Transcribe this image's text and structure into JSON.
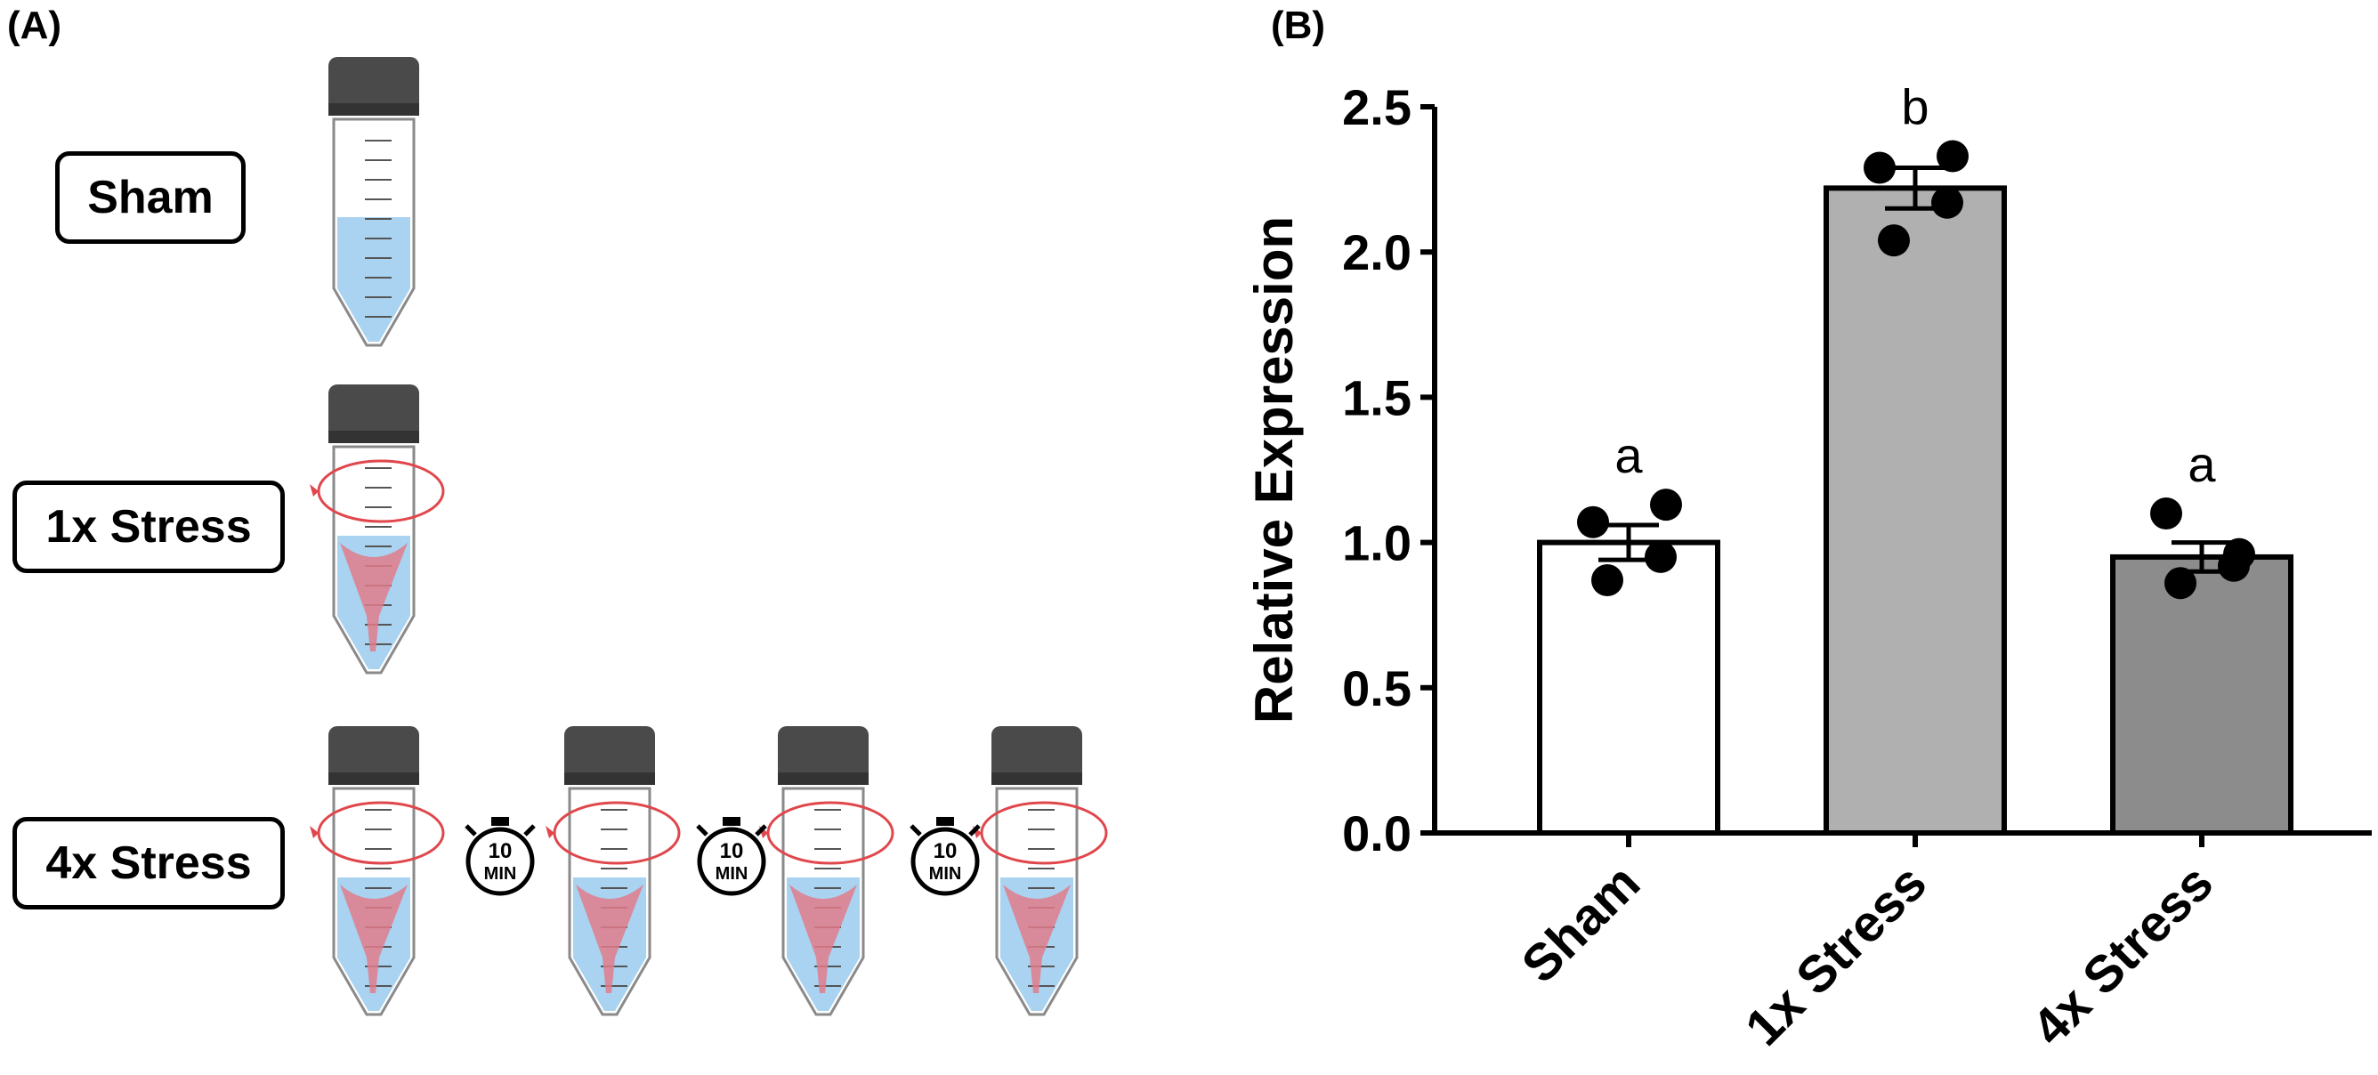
{
  "panel_a": {
    "label": "(A)",
    "groups": [
      "Sham",
      "1x Stress",
      "4x Stress"
    ],
    "timer_text": [
      "10",
      "MIN"
    ],
    "timer_count": 3,
    "colors": {
      "cap": "#4a4a4a",
      "liquid": "#a9d3f0",
      "vortex": "#e07b8b",
      "arrow": "#e0474c"
    }
  },
  "panel_b": {
    "label": "(B)"
  },
  "chart_data": {
    "type": "bar",
    "title": "",
    "xlabel": "",
    "ylabel": "Relative Expression",
    "categories": [
      "Sham",
      "1x Stress",
      "4x Stress"
    ],
    "values": [
      1.0,
      2.22,
      0.95
    ],
    "sem": [
      0.06,
      0.07,
      0.05
    ],
    "points": [
      [
        1.07,
        1.13,
        0.95,
        0.87
      ],
      [
        2.29,
        2.33,
        2.17,
        2.04
      ],
      [
        1.1,
        0.96,
        0.92,
        0.86
      ]
    ],
    "significance": [
      "a",
      "b",
      "a"
    ],
    "bar_colors": [
      "#ffffff",
      "#b0b0b0",
      "#8c8c8c"
    ],
    "ylim": [
      0,
      2.5
    ],
    "yticks": [
      "0.0",
      "0.5",
      "1.0",
      "1.5",
      "2.0",
      "2.5"
    ],
    "grid": false,
    "legend": "none"
  }
}
